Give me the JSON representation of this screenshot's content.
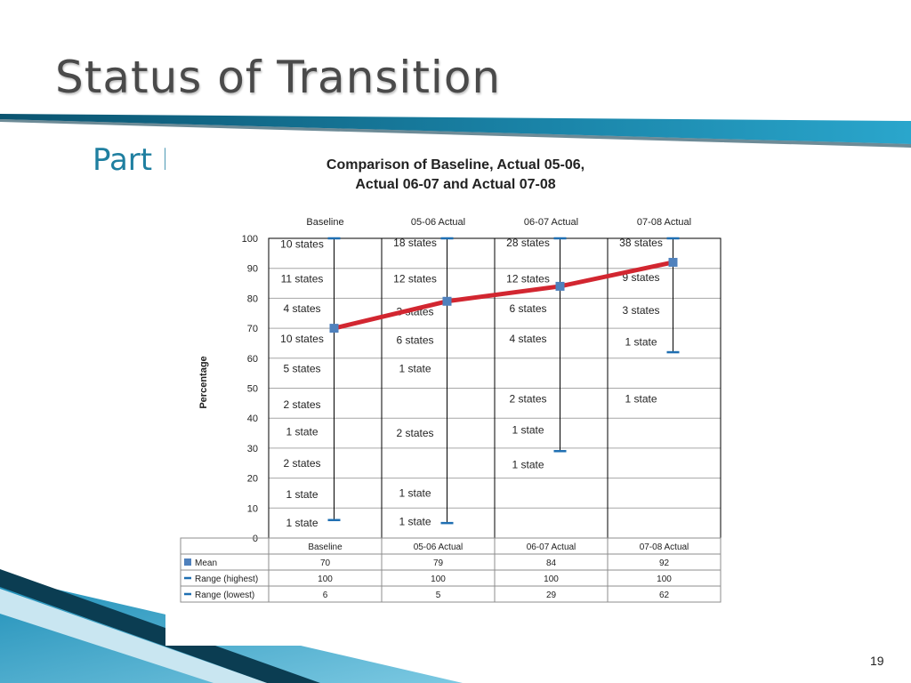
{
  "slide": {
    "title": "Status of Transition",
    "subtitle": "Part B",
    "page_number": "19"
  },
  "colors": {
    "title_text": "#4a4a4a",
    "subtitle_text": "#1f7fa0",
    "band_dark": "#0e5d7c",
    "band_light": "#4fb1d3",
    "mean_line": "#d22630",
    "mean_marker": "#4f81bd",
    "range_line": "#000000",
    "range_tick": "#1f6fb2",
    "grid": "#a6a6a6"
  },
  "chart_data": {
    "type": "line",
    "title_lines": [
      "Comparison of Baseline, Actual 05-06,",
      "Actual 06-07 and Actual 07-08"
    ],
    "ylabel": "Percentage",
    "ylim": [
      0,
      100
    ],
    "yticks": [
      0,
      10,
      20,
      30,
      40,
      50,
      60,
      70,
      80,
      90,
      100
    ],
    "grid": true,
    "categories": [
      "Baseline",
      "05-06 Actual",
      "06-07 Actual",
      "07-08 Actual"
    ],
    "series": [
      {
        "name": "Mean",
        "values": [
          70,
          79,
          84,
          92
        ]
      },
      {
        "name": "Range (highest)",
        "values": [
          100,
          100,
          100,
          100
        ]
      },
      {
        "name": "Range (lowest)",
        "values": [
          6,
          5,
          29,
          62
        ]
      }
    ],
    "annotations": [
      {
        "col": 0,
        "y": 98,
        "text": "10  states"
      },
      {
        "col": 0,
        "y": 86.5,
        "text": "11  states"
      },
      {
        "col": 0,
        "y": 76.5,
        "text": "4 states"
      },
      {
        "col": 0,
        "y": 66.5,
        "text": "10  states"
      },
      {
        "col": 0,
        "y": 56.5,
        "text": "5 states"
      },
      {
        "col": 0,
        "y": 44.5,
        "text": "2 states"
      },
      {
        "col": 0,
        "y": 35.5,
        "text": "1 state"
      },
      {
        "col": 0,
        "y": 25,
        "text": "2 states"
      },
      {
        "col": 0,
        "y": 14.5,
        "text": "1 state"
      },
      {
        "col": 0,
        "y": 5,
        "text": "1 state"
      },
      {
        "col": 1,
        "y": 98.5,
        "text": "18 states"
      },
      {
        "col": 1,
        "y": 86.5,
        "text": "12  states"
      },
      {
        "col": 1,
        "y": 75.5,
        "text": "3 states"
      },
      {
        "col": 1,
        "y": 66,
        "text": "6 states"
      },
      {
        "col": 1,
        "y": 56.5,
        "text": "1 state"
      },
      {
        "col": 1,
        "y": 35,
        "text": "2 states"
      },
      {
        "col": 1,
        "y": 15,
        "text": "1 state"
      },
      {
        "col": 1,
        "y": 5.5,
        "text": "1 state"
      },
      {
        "col": 2,
        "y": 98.5,
        "text": "28  states"
      },
      {
        "col": 2,
        "y": 86.5,
        "text": "12  states"
      },
      {
        "col": 2,
        "y": 76.5,
        "text": "6 states"
      },
      {
        "col": 2,
        "y": 66.5,
        "text": "4 states"
      },
      {
        "col": 2,
        "y": 46.5,
        "text": "2 states"
      },
      {
        "col": 2,
        "y": 36,
        "text": "1 state"
      },
      {
        "col": 2,
        "y": 24.5,
        "text": "1 state"
      },
      {
        "col": 3,
        "y": 98.5,
        "text": "38  states"
      },
      {
        "col": 3,
        "y": 87,
        "text": "9 states"
      },
      {
        "col": 3,
        "y": 76,
        "text": "3 states"
      },
      {
        "col": 3,
        "y": 65.5,
        "text": "1 state"
      },
      {
        "col": 3,
        "y": 46.5,
        "text": "1 state"
      }
    ]
  }
}
